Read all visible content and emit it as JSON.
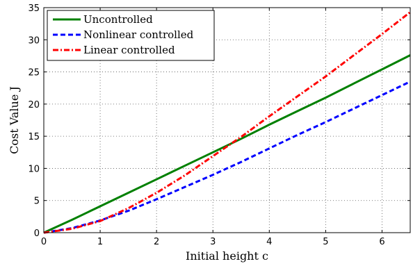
{
  "chart_data": {
    "type": "line",
    "title": "",
    "xlabel": "Initial height c",
    "ylabel": "Cost Value J",
    "xlim": [
      0,
      6.5
    ],
    "ylim": [
      0,
      35
    ],
    "xticks": [
      0,
      1,
      2,
      3,
      4,
      5,
      6
    ],
    "yticks": [
      0,
      5,
      10,
      15,
      20,
      25,
      30,
      35
    ],
    "grid": true,
    "legend_position": "top-left",
    "x": [
      0,
      0.5,
      1,
      1.5,
      2,
      2.5,
      3,
      3.5,
      4,
      4.5,
      5,
      5.5,
      6,
      6.5
    ],
    "series": [
      {
        "name": "Uncontrolled",
        "color": "#008000",
        "dash": "solid",
        "values": [
          0,
          2.0,
          4.1,
          6.2,
          8.3,
          10.4,
          12.5,
          14.6,
          16.8,
          18.9,
          21.0,
          23.2,
          25.4,
          27.6
        ]
      },
      {
        "name": "Nonlinear controlled",
        "color": "#0000ff",
        "dash": "dashed",
        "values": [
          0,
          0.7,
          1.9,
          3.4,
          5.2,
          7.1,
          9.0,
          11.0,
          13.1,
          15.2,
          17.2,
          19.3,
          21.4,
          23.5
        ]
      },
      {
        "name": "Linear controlled",
        "color": "#ff0000",
        "dash": "dashdot",
        "values": [
          0,
          0.6,
          1.8,
          3.8,
          6.2,
          8.9,
          11.9,
          14.9,
          18.1,
          21.2,
          24.3,
          27.6,
          30.9,
          34.3
        ]
      }
    ]
  }
}
